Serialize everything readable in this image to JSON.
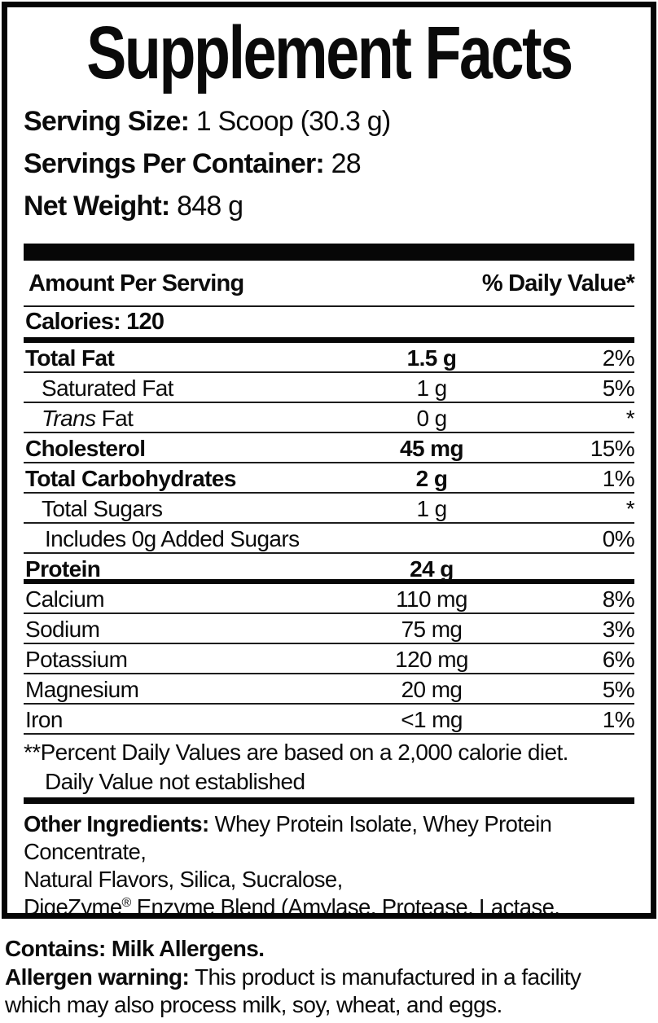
{
  "panel": {
    "title": "Supplement Facts",
    "serving": [
      {
        "label": "Serving Size:",
        "value": " 1 Scoop (30.3 g)"
      },
      {
        "label": "Servings Per Container:",
        "value": " 28"
      },
      {
        "label": "Net Weight:",
        "value": " 848 g"
      }
    ],
    "header": {
      "amount_col": "Amount Per Serving",
      "dv_col": "% Daily Value*"
    },
    "calories": "Calories: 120",
    "rows": [
      {
        "name": "Total Fat",
        "amount": "1.5 g",
        "dv": "2%"
      },
      {
        "name": "Saturated Fat",
        "amount": "1 g",
        "dv": "5%"
      },
      {
        "name_italic": "Trans",
        "name_rest": " Fat",
        "amount": "0 g",
        "dv": "*"
      },
      {
        "name": "Cholesterol",
        "amount": "45 mg",
        "dv": "15%"
      },
      {
        "name": "Total Carbohydrates",
        "amount": "2 g",
        "dv": "1%"
      },
      {
        "name": "Total Sugars",
        "amount": "1 g",
        "dv": "*"
      },
      {
        "name": "Includes 0g Added Sugars",
        "amount": "",
        "dv": "0%"
      },
      {
        "name": "Protein",
        "amount": "24 g",
        "dv": ""
      },
      {
        "name": "Calcium",
        "amount": "110 mg",
        "dv": "8%"
      },
      {
        "name": "Sodium",
        "amount": "75 mg",
        "dv": "3%"
      },
      {
        "name": "Potassium",
        "amount": "120 mg",
        "dv": "6%"
      },
      {
        "name": "Magnesium",
        "amount": "20 mg",
        "dv": "5%"
      },
      {
        "name": "Iron",
        "amount": "<1 mg",
        "dv": "1%"
      }
    ],
    "footnotes": {
      "line1": "**Percent Daily Values are based on a 2,000 calorie diet.",
      "line2": "Daily Value not established"
    },
    "other_ingredients": {
      "label": "Other Ingredients:",
      "line1_rest": " Whey Protein Isolate, Whey Protein Concentrate,",
      "line2": "Natural Flavors, Silica, Sucralose,",
      "line3_brand": "DigeZyme",
      "line3_reg": "®",
      "line3_rest": " Enzyme Blend (Amylase, Protease, Lactase, Cellulase, Lipase)."
    }
  },
  "allergen": {
    "contains": "Contains: Milk Allergens.",
    "warning_label": "Allergen warning:",
    "warning_line1": " This product is manufactured in a facility",
    "warning_line2": "which may also process milk, soy, wheat, and eggs."
  },
  "colors": {
    "ink": "#0b0b0b",
    "background": "#ffffff"
  }
}
